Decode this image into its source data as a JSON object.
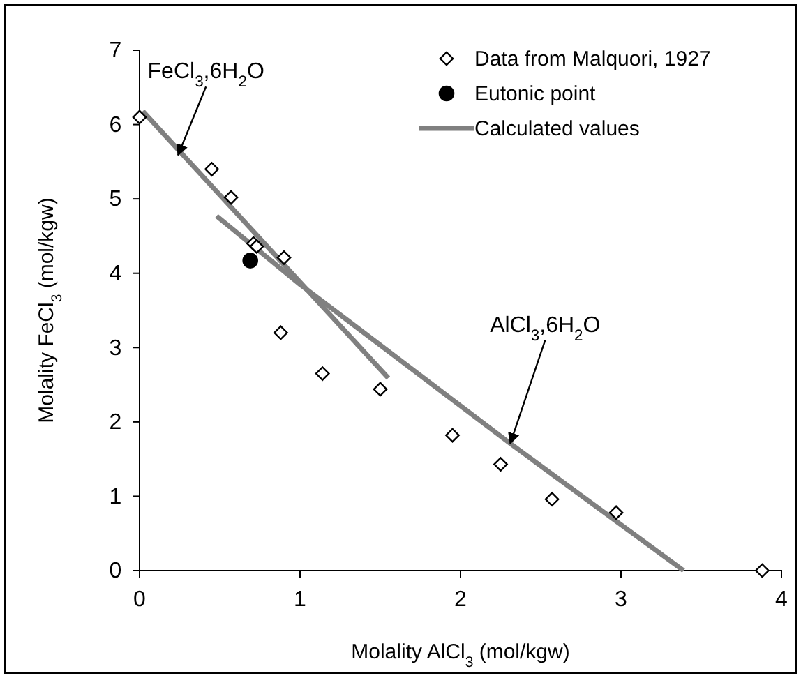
{
  "chart_data": {
    "type": "scatter",
    "xlabel": "Molality AlCl$_{3}$ (mol/kgw)",
    "ylabel": "Molality FeCl$_{3}$  (mol/kgw)",
    "xlim": [
      0,
      4
    ],
    "ylim": [
      0,
      7
    ],
    "xticks": [
      0,
      1,
      2,
      3,
      4
    ],
    "yticks": [
      0,
      1,
      2,
      3,
      4,
      5,
      6,
      7
    ],
    "grid": false,
    "legend": "top right",
    "series": [
      {
        "name": "Data from Malquori, 1927",
        "marker": "diamond",
        "color": "#000000",
        "x": [
          0,
          0.45,
          0.57,
          0.71,
          0.73,
          0.9,
          0.88,
          1.14,
          1.5,
          1.95,
          2.25,
          2.57,
          2.97,
          3.88
        ],
        "values": [
          6.1,
          5.4,
          5.02,
          4.4,
          4.36,
          4.21,
          3.2,
          2.65,
          2.44,
          1.82,
          1.43,
          0.96,
          0.78,
          0
        ]
      },
      {
        "name": "Eutonic point",
        "marker": "circle",
        "color": "#000000",
        "x": [
          0.69
        ],
        "values": [
          4.17
        ]
      },
      {
        "name": "Calculated values",
        "type": "line",
        "marker": "none",
        "color": "#808080",
        "x": [
          0.02,
          1.55
        ],
        "values": [
          6.18,
          2.59
        ]
      },
      {
        "type": "line",
        "marker": "none",
        "color": "#808080",
        "x": [
          0.48,
          1.0,
          2.31,
          3.39
        ],
        "values": [
          4.77,
          3.85,
          1.71,
          0
        ]
      }
    ],
    "annotations": [
      {
        "text": "FeCl$_{3}$,6H$_{2}$O",
        "x": 0.24,
        "y": 5.59
      },
      {
        "text": "AlCl$_{3}$,6H$_{2}$O",
        "x": 2.31,
        "y": 1.71
      }
    ]
  }
}
